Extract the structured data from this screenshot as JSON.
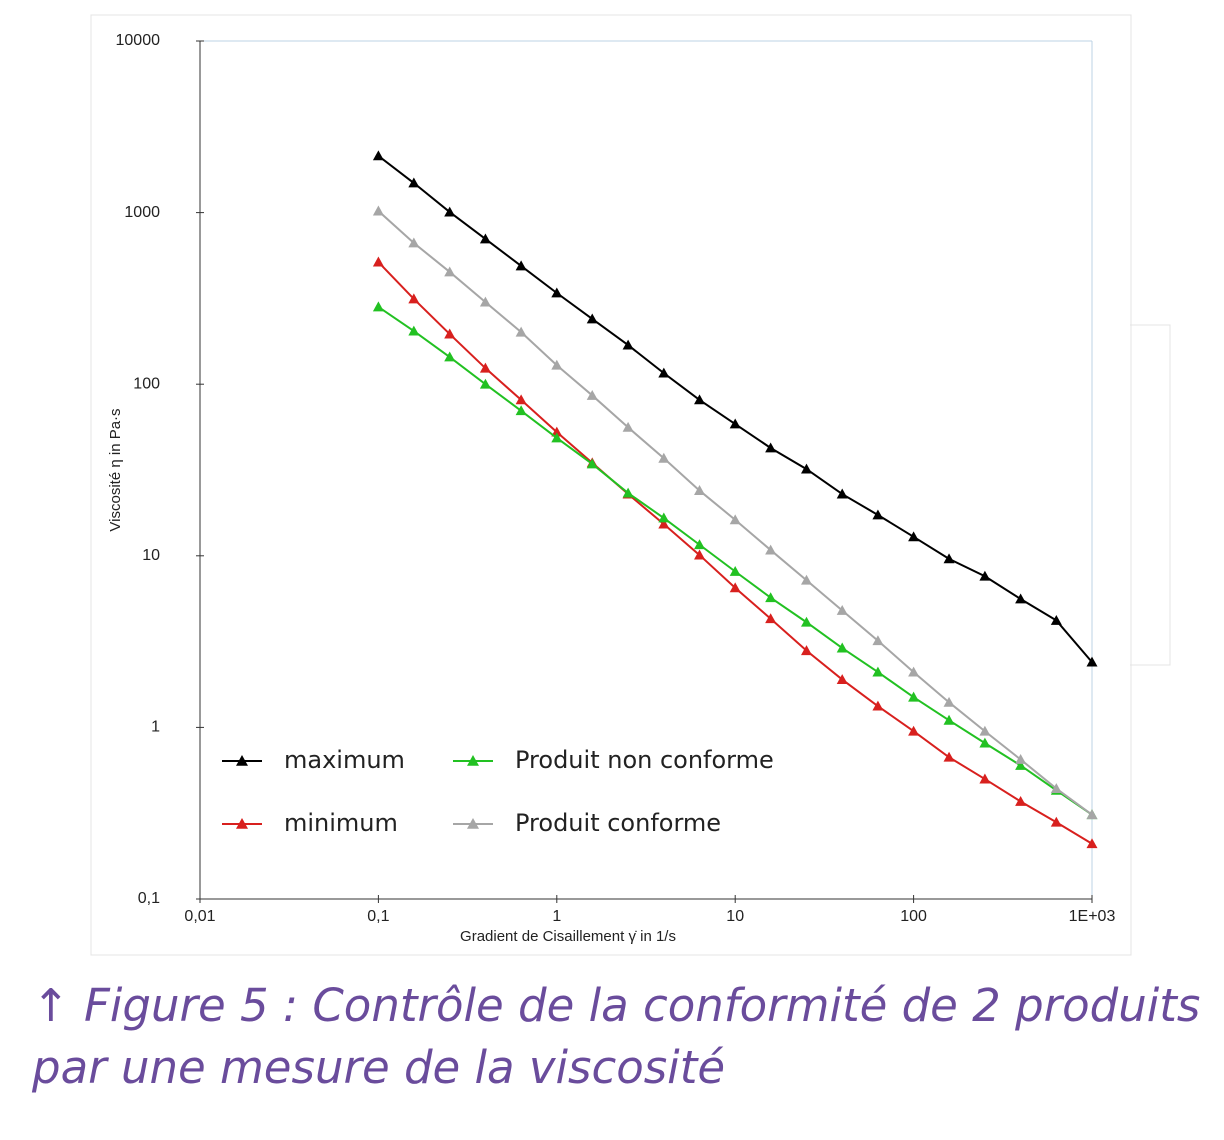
{
  "chart_data": {
    "type": "line",
    "xlabel": "Gradient de Cisaillement γ̇ in 1/s",
    "ylabel": "Viscosité η in Pa·s",
    "log_x": true,
    "log_y": true,
    "x": [
      0.1,
      0.158,
      0.251,
      0.398,
      0.631,
      1,
      1.58,
      2.51,
      3.98,
      6.31,
      10,
      15.8,
      25.1,
      39.8,
      63.1,
      100,
      158,
      251,
      398,
      631,
      1000
    ],
    "series": [
      {
        "name": "maximum",
        "color": "#000000",
        "values": [
          2140,
          1487,
          1007,
          702,
          489,
          340,
          240,
          169,
          116,
          81,
          58.6,
          42.5,
          32,
          22.9,
          17.3,
          12.9,
          9.6,
          7.6,
          5.6,
          4.2,
          2.4
        ]
      },
      {
        "name": "minimum",
        "color": "#d8201e",
        "values": [
          515,
          314,
          196,
          124,
          81,
          52.6,
          34.8,
          22.9,
          15.3,
          10.1,
          6.5,
          4.3,
          2.8,
          1.9,
          1.33,
          0.95,
          0.67,
          0.5,
          0.37,
          0.28,
          0.21
        ]
      },
      {
        "name": "Produit non conforme",
        "color": "#22c122",
        "values": [
          282,
          204,
          144,
          100,
          70,
          48.6,
          34.3,
          23.2,
          16.6,
          11.6,
          8.1,
          5.7,
          4.1,
          2.9,
          2.1,
          1.5,
          1.1,
          0.81,
          0.6,
          0.43,
          0.31
        ]
      },
      {
        "name": "Produit conforme",
        "color": "#a6a6a6",
        "values": [
          1021,
          665,
          451,
          301,
          201,
          129,
          86,
          56,
          37,
          24,
          16.2,
          10.8,
          7.2,
          4.8,
          3.2,
          2.1,
          1.4,
          0.95,
          0.65,
          0.44,
          0.31
        ]
      }
    ],
    "xlim": [
      0.01,
      1000
    ],
    "ylim": [
      0.1,
      10000
    ],
    "xticks": [
      {
        "value": 0.01,
        "label": "0,01"
      },
      {
        "value": 0.1,
        "label": "0,1"
      },
      1,
      10,
      100,
      {
        "value": 1000,
        "label": "1E+03"
      }
    ],
    "yticks": [
      {
        "value": 0.1,
        "label": "0,1"
      },
      1,
      10,
      100,
      1000,
      10000
    ],
    "legend": "lower left",
    "caption": [
      "↑ Figure 5 : Contrôle de la conformité de 2 produits",
      "par une mesure de la viscosité"
    ]
  }
}
